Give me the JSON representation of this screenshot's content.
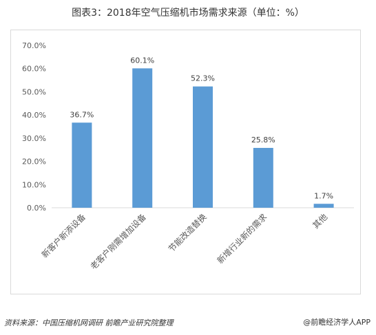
{
  "title": "图表3：2018年空气压缩机市场需求来源（单位：%）",
  "source_text": "资料来源：中国压缩机网调研 前瞻产业研究院整理",
  "brand_text": "@前瞻经济学人APP",
  "colors": {
    "bar": "#5b9bd5",
    "axis": "#d9d9d9",
    "grid": "#d9d9d9",
    "text": "#595959"
  },
  "chart_data": {
    "type": "bar",
    "categories": [
      "新客户新添设备",
      "老客户刚需增加设备",
      "节能改造替换",
      "新增行业新的需求",
      "其他"
    ],
    "values": [
      36.7,
      60.1,
      52.3,
      25.8,
      1.7
    ],
    "data_labels": [
      "36.7%",
      "60.1%",
      "52.3%",
      "25.8%",
      "1.7%"
    ],
    "yticks": [
      "0.0%",
      "10.0%",
      "20.0%",
      "30.0%",
      "40.0%",
      "50.0%",
      "60.0%",
      "70.0%"
    ],
    "ylim": [
      0,
      70
    ],
    "grid": false,
    "title": "图表3：2018年空气压缩机市场需求来源（单位：%）",
    "xlabel": "",
    "ylabel": ""
  }
}
